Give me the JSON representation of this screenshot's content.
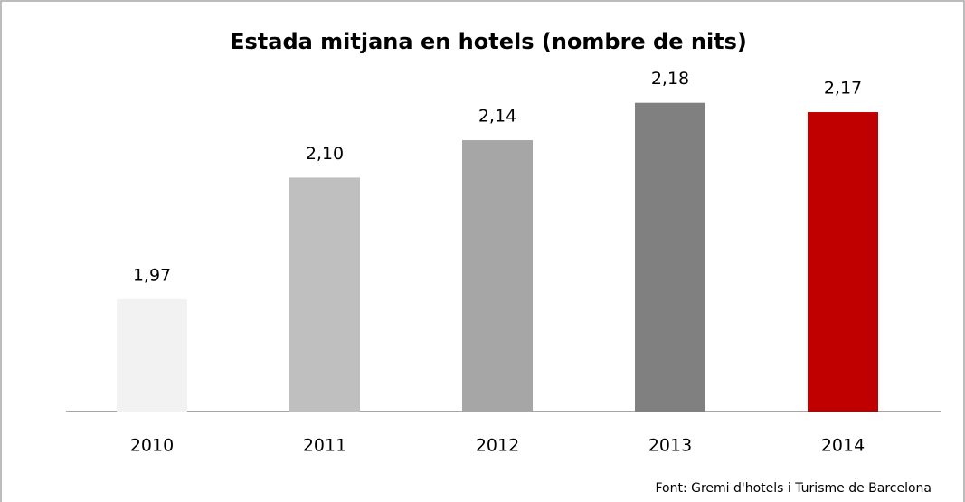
{
  "chart_data": {
    "type": "bar",
    "title": "Estada mitjana en hotels (nombre de nits)",
    "categories": [
      "2010",
      "2011",
      "2012",
      "2013",
      "2014"
    ],
    "values": [
      1.97,
      2.1,
      2.14,
      2.18,
      2.17
    ],
    "value_labels": [
      "1,97",
      "2,10",
      "2,14",
      "2,18",
      "2,17"
    ],
    "colors": [
      "#f2f2f2",
      "#bfbfbf",
      "#a6a6a6",
      "#808080",
      "#c00000"
    ],
    "ylim": [
      1.85,
      2.2
    ],
    "source": "Font:  Gremi d'hotels i Turisme de Barcelona"
  }
}
